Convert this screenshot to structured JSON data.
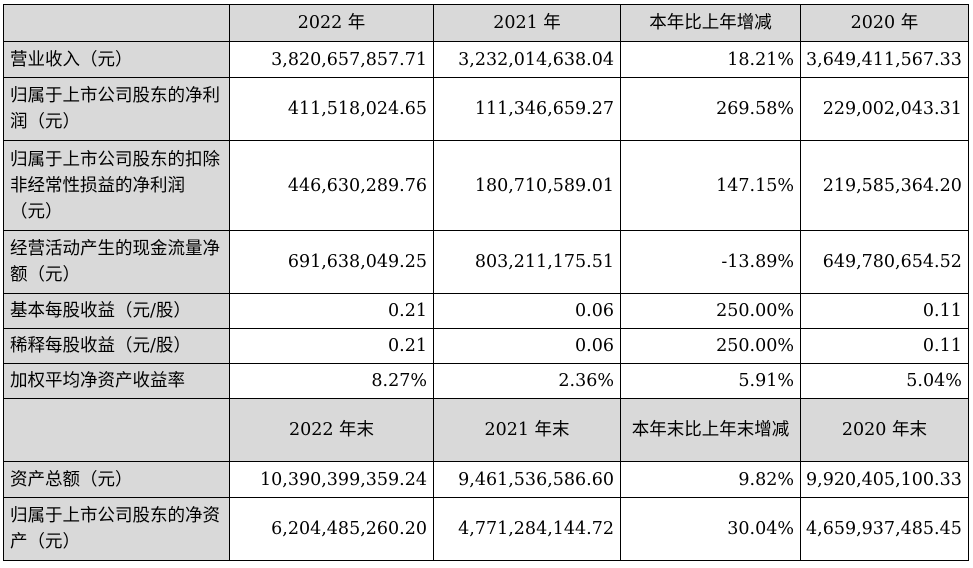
{
  "header1": [
    "",
    "2022 年",
    "2021 年",
    "本年比上年增减",
    "2020 年"
  ],
  "rows1": [
    {
      "label": "营业收入（元）",
      "v2022": "3,820,657,857.71",
      "v2021": "3,232,014,638.04",
      "change": "18.21%",
      "v2020": "3,649,411,567.33"
    },
    {
      "label": "归属于上市公司股东的净利润（元）",
      "v2022": "411,518,024.65",
      "v2021": "111,346,659.27",
      "change": "269.58%",
      "v2020": "229,002,043.31"
    },
    {
      "label": "归属于上市公司股东的扣除非经常性损益的净利润（元）",
      "v2022": "446,630,289.76",
      "v2021": "180,710,589.01",
      "change": "147.15%",
      "v2020": "219,585,364.20"
    },
    {
      "label": "经营活动产生的现金流量净额（元）",
      "v2022": "691,638,049.25",
      "v2021": "803,211,175.51",
      "change": "-13.89%",
      "v2020": "649,780,654.52"
    },
    {
      "label": "基本每股收益（元/股）",
      "v2022": "0.21",
      "v2021": "0.06",
      "change": "250.00%",
      "v2020": "0.11"
    },
    {
      "label": "稀释每股收益（元/股）",
      "v2022": "0.21",
      "v2021": "0.06",
      "change": "250.00%",
      "v2020": "0.11"
    },
    {
      "label": "加权平均净资产收益率",
      "v2022": "8.27%",
      "v2021": "2.36%",
      "change": "5.91%",
      "v2020": "5.04%"
    }
  ],
  "header2": [
    "",
    "2022 年末",
    "2021 年末",
    "本年末比上年末增减",
    "2020 年末"
  ],
  "rows2": [
    {
      "label": "资产总额（元）",
      "v2022": "10,390,399,359.24",
      "v2021": "9,461,536,586.60",
      "change": "9.82%",
      "v2020": "9,920,405,100.33"
    },
    {
      "label": "归属于上市公司股东的净资产（元）",
      "v2022": "6,204,485,260.20",
      "v2021": "4,771,284,144.72",
      "change": "30.04%",
      "v2020": "4,659,937,485.45"
    }
  ]
}
